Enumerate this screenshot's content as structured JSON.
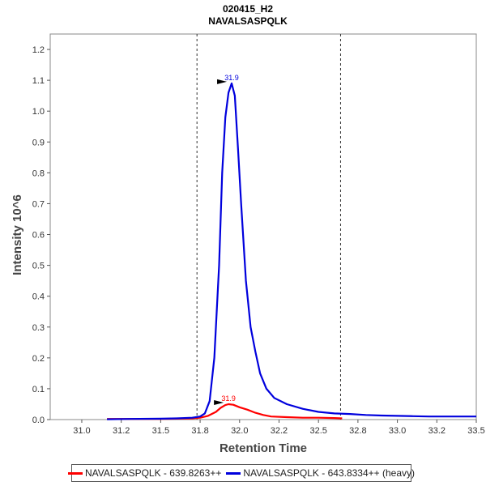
{
  "chart_data": {
    "type": "line",
    "title": "020415_H2",
    "subtitle": "NAVALSASPQLK",
    "xlabel": "Retention Time",
    "ylabel": "Intensity 10^6",
    "xlim": [
      30.8,
      33.5
    ],
    "ylim": [
      0,
      1.25
    ],
    "x_ticks": [
      "31.0",
      "31.2",
      "31.5",
      "31.8",
      "32.0",
      "32.2",
      "32.5",
      "32.8",
      "33.0",
      "33.2",
      "33.5"
    ],
    "y_ticks": [
      "0.0",
      "0.1",
      "0.2",
      "0.3",
      "0.4",
      "0.5",
      "0.6",
      "0.7",
      "0.8",
      "0.9",
      "1.0",
      "1.1",
      "1.2"
    ],
    "x_tick_values": [
      31.0,
      31.25,
      31.5,
      31.75,
      32.0,
      32.25,
      32.5,
      32.75,
      33.0,
      33.25,
      33.5
    ],
    "y_tick_values": [
      0,
      0.1,
      0.2,
      0.3,
      0.4,
      0.5,
      0.6,
      0.7,
      0.8,
      0.9,
      1.0,
      1.1,
      1.2
    ],
    "integration_bounds": [
      31.73,
      32.64
    ],
    "grid": false,
    "legend_position": "bottom",
    "series": [
      {
        "name": "NAVALSASPQLK - 639.8263++",
        "color": "#ff0000",
        "peak_label": "31.9",
        "peak": [
          31.93,
          0.05
        ],
        "x": [
          31.16,
          31.3,
          31.4,
          31.5,
          31.6,
          31.7,
          31.75,
          31.8,
          31.85,
          31.88,
          31.91,
          31.93,
          31.96,
          32.0,
          32.05,
          32.1,
          32.15,
          32.2,
          32.3,
          32.4,
          32.5,
          32.6,
          32.65
        ],
        "y": [
          0.002,
          0.002,
          0.002,
          0.002,
          0.003,
          0.004,
          0.006,
          0.012,
          0.025,
          0.038,
          0.047,
          0.05,
          0.048,
          0.04,
          0.032,
          0.022,
          0.015,
          0.01,
          0.008,
          0.006,
          0.006,
          0.005,
          0.004
        ]
      },
      {
        "name": "NAVALSASPQLK - 643.8334++ (heavy)",
        "color": "#0000dd",
        "peak_label": "31.9",
        "peak": [
          31.95,
          1.09
        ],
        "x": [
          31.16,
          31.3,
          31.5,
          31.6,
          31.7,
          31.75,
          31.78,
          31.81,
          31.84,
          31.87,
          31.89,
          31.91,
          31.93,
          31.95,
          31.97,
          31.99,
          32.01,
          32.04,
          32.07,
          32.1,
          32.13,
          32.17,
          32.22,
          32.3,
          32.4,
          32.5,
          32.6,
          32.7,
          32.8,
          32.9,
          33.0,
          33.1,
          33.2,
          33.3,
          33.4,
          33.5
        ],
        "y": [
          0.001,
          0.002,
          0.003,
          0.004,
          0.006,
          0.01,
          0.02,
          0.06,
          0.2,
          0.5,
          0.8,
          0.98,
          1.06,
          1.09,
          1.05,
          0.88,
          0.7,
          0.45,
          0.3,
          0.22,
          0.15,
          0.1,
          0.07,
          0.05,
          0.035,
          0.025,
          0.02,
          0.018,
          0.015,
          0.013,
          0.012,
          0.011,
          0.01,
          0.01,
          0.01,
          0.01
        ]
      }
    ]
  }
}
